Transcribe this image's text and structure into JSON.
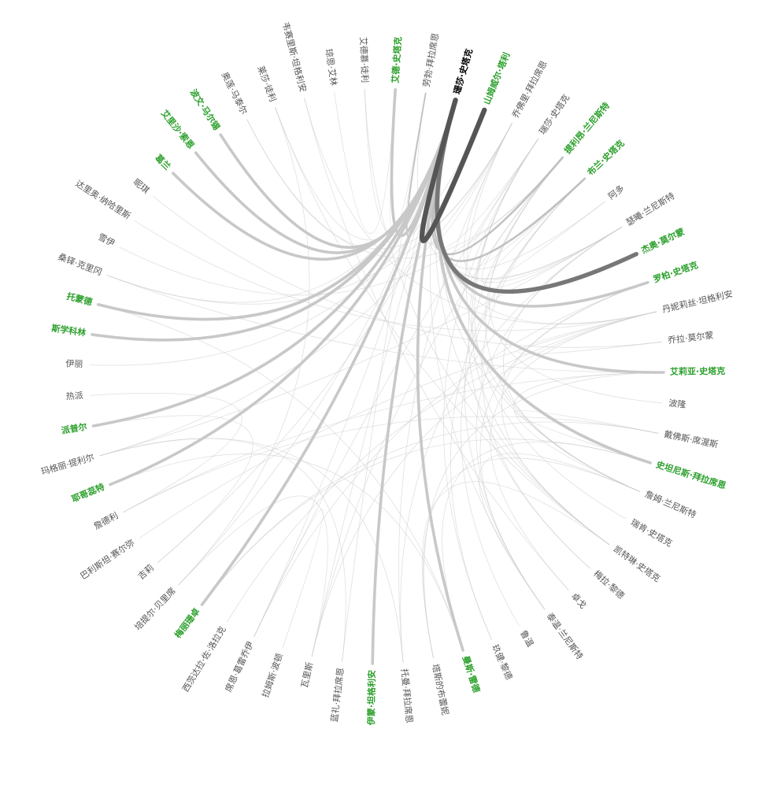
{
  "nodes": [
    {
      "name": "珊莎·史塔克",
      "highlight": false,
      "selected": true
    },
    {
      "name": "山姆威尔·塔利",
      "highlight": true
    },
    {
      "name": "乔佛里·拜拉席恩",
      "highlight": false
    },
    {
      "name": "瑞莎·史塔克",
      "highlight": false
    },
    {
      "name": "提利昂·兰尼斯特",
      "highlight": true
    },
    {
      "name": "布兰·史塔克",
      "highlight": true
    },
    {
      "name": "阿多",
      "highlight": false
    },
    {
      "name": "瑟曦·兰尼斯特",
      "highlight": false
    },
    {
      "name": "杰奥·莫尔蒙",
      "highlight": true
    },
    {
      "name": "罗柏·史塔克",
      "highlight": true
    },
    {
      "name": "丹妮莉丝·坦格利安",
      "highlight": false
    },
    {
      "name": "乔拉·莫尔蒙",
      "highlight": false
    },
    {
      "name": "艾莉亚·史塔克",
      "highlight": true
    },
    {
      "name": "波隆",
      "highlight": false
    },
    {
      "name": "戴佛斯·席渥斯",
      "highlight": false
    },
    {
      "name": "史坦尼斯·拜拉席恩",
      "highlight": true
    },
    {
      "name": "詹姆·兰尼斯特",
      "highlight": false
    },
    {
      "name": "瑞肯·史塔克",
      "highlight": false
    },
    {
      "name": "凯特琳·史塔克",
      "highlight": false
    },
    {
      "name": "梅拉·黎德",
      "highlight": false
    },
    {
      "name": "卓戈",
      "highlight": false
    },
    {
      "name": "泰温·兰尼斯特",
      "highlight": false
    },
    {
      "name": "鲁温",
      "highlight": false
    },
    {
      "name": "玖健·黎德",
      "highlight": false
    },
    {
      "name": "曼斯·雷德",
      "highlight": true
    },
    {
      "name": "塔斯的布蕾妮",
      "highlight": false
    },
    {
      "name": "托曼·拜拉席恩",
      "highlight": false
    },
    {
      "name": "伊蒙·坦格利安",
      "highlight": true
    },
    {
      "name": "蓝礼·拜拉席恩",
      "highlight": false
    },
    {
      "name": "瓦里斯",
      "highlight": false
    },
    {
      "name": "拉姆斯·波顿",
      "highlight": false
    },
    {
      "name": "席恩·葛雷乔伊",
      "highlight": false
    },
    {
      "name": "西茨达拉·佐·洛拉克",
      "highlight": false
    },
    {
      "name": "梅丽珊卓",
      "highlight": true
    },
    {
      "name": "培提尔·贝里席",
      "highlight": false
    },
    {
      "name": "吉莉",
      "highlight": false
    },
    {
      "name": "巴利斯坦·赛尔弥",
      "highlight": false
    },
    {
      "name": "詹德利",
      "highlight": false
    },
    {
      "name": "耶哥蕊特",
      "highlight": true
    },
    {
      "name": "玛格丽·提利尔",
      "highlight": false
    },
    {
      "name": "派普尔",
      "highlight": true
    },
    {
      "name": "热派",
      "highlight": false
    },
    {
      "name": "伊丽",
      "highlight": false
    },
    {
      "name": "斯学科林",
      "highlight": true
    },
    {
      "name": "托蒙德",
      "highlight": true
    },
    {
      "name": "桑铎·克里冈",
      "highlight": false
    },
    {
      "name": "雪伊",
      "highlight": false
    },
    {
      "name": "达里奥·纳哈里斯",
      "highlight": false
    },
    {
      "name": "昵琪",
      "highlight": false
    },
    {
      "name": "葛兰",
      "highlight": true
    },
    {
      "name": "艾里沙·索恩",
      "highlight": true
    },
    {
      "name": "波文·马尔锡",
      "highlight": true
    },
    {
      "name": "奥莲·马泰尔",
      "highlight": false
    },
    {
      "name": "莱莎·徒利",
      "highlight": false
    },
    {
      "name": "韦赛里斯·坦格利安",
      "highlight": false
    },
    {
      "name": "琼恩·艾林",
      "highlight": false
    },
    {
      "name": "艾德慕·徒利",
      "highlight": false
    },
    {
      "name": "艾德·史塔克",
      "highlight": true
    },
    {
      "name": "劳勃·拜拉席恩",
      "highlight": false
    }
  ],
  "links": [
    {
      "source": 0,
      "target": 1,
      "weight": 7,
      "style": "dark"
    },
    {
      "source": 0,
      "target": 8,
      "weight": 6,
      "style": "dark"
    },
    {
      "source": 0,
      "target": 9,
      "weight": 4
    },
    {
      "source": 0,
      "target": 12,
      "weight": 4
    },
    {
      "source": 0,
      "target": 15,
      "weight": 4
    },
    {
      "source": 0,
      "target": 24,
      "weight": 4
    },
    {
      "source": 0,
      "target": 27,
      "weight": 4
    },
    {
      "source": 0,
      "target": 33,
      "weight": 4
    },
    {
      "source": 0,
      "target": 38,
      "weight": 4
    },
    {
      "source": 0,
      "target": 40,
      "weight": 4
    },
    {
      "source": 0,
      "target": 43,
      "weight": 4
    },
    {
      "source": 0,
      "target": 44,
      "weight": 4
    },
    {
      "source": 0,
      "target": 49,
      "weight": 4
    },
    {
      "source": 0,
      "target": 50,
      "weight": 4
    },
    {
      "source": 0,
      "target": 51,
      "weight": 4
    },
    {
      "source": 0,
      "target": 57,
      "weight": 4
    },
    {
      "source": 0,
      "target": 4,
      "weight": 3
    },
    {
      "source": 0,
      "target": 5,
      "weight": 3
    },
    {
      "source": 0,
      "target": 58,
      "weight": 2
    },
    {
      "source": 0,
      "target": 2,
      "weight": 1
    },
    {
      "source": 0,
      "target": 3,
      "weight": 1
    },
    {
      "source": 0,
      "target": 6,
      "weight": 1
    },
    {
      "source": 0,
      "target": 7,
      "weight": 1
    },
    {
      "source": 0,
      "target": 10,
      "weight": 1
    },
    {
      "source": 0,
      "target": 16,
      "weight": 1
    },
    {
      "source": 0,
      "target": 18,
      "weight": 1
    },
    {
      "source": 0,
      "target": 21,
      "weight": 1
    },
    {
      "source": 0,
      "target": 29,
      "weight": 1
    },
    {
      "source": 0,
      "target": 31,
      "weight": 1
    },
    {
      "source": 0,
      "target": 34,
      "weight": 1
    },
    {
      "source": 0,
      "target": 45,
      "weight": 1
    },
    {
      "source": 0,
      "target": 53,
      "weight": 1
    },
    {
      "source": 0,
      "target": 56,
      "weight": 1
    },
    {
      "source": 2,
      "target": 7,
      "weight": 1
    },
    {
      "source": 2,
      "target": 16,
      "weight": 1
    },
    {
      "source": 2,
      "target": 26,
      "weight": 1
    },
    {
      "source": 2,
      "target": 39,
      "weight": 1
    },
    {
      "source": 2,
      "target": 45,
      "weight": 1
    },
    {
      "source": 2,
      "target": 52,
      "weight": 1
    },
    {
      "source": 3,
      "target": 5,
      "weight": 1
    },
    {
      "source": 3,
      "target": 17,
      "weight": 1
    },
    {
      "source": 3,
      "target": 18,
      "weight": 1
    },
    {
      "source": 3,
      "target": 19,
      "weight": 1
    },
    {
      "source": 3,
      "target": 23,
      "weight": 1
    },
    {
      "source": 3,
      "target": 31,
      "weight": 1
    },
    {
      "source": 4,
      "target": 7,
      "weight": 1
    },
    {
      "source": 4,
      "target": 13,
      "weight": 1
    },
    {
      "source": 4,
      "target": 16,
      "weight": 1
    },
    {
      "source": 4,
      "target": 21,
      "weight": 1
    },
    {
      "source": 4,
      "target": 29,
      "weight": 1
    },
    {
      "source": 4,
      "target": 46,
      "weight": 1
    },
    {
      "source": 4,
      "target": 52,
      "weight": 1
    },
    {
      "source": 5,
      "target": 6,
      "weight": 1
    },
    {
      "source": 5,
      "target": 19,
      "weight": 1
    },
    {
      "source": 5,
      "target": 22,
      "weight": 1
    },
    {
      "source": 5,
      "target": 23,
      "weight": 1
    },
    {
      "source": 7,
      "target": 16,
      "weight": 1
    },
    {
      "source": 7,
      "target": 21,
      "weight": 1
    },
    {
      "source": 7,
      "target": 26,
      "weight": 1
    },
    {
      "source": 7,
      "target": 39,
      "weight": 1
    },
    {
      "source": 7,
      "target": 58,
      "weight": 1
    },
    {
      "source": 9,
      "target": 18,
      "weight": 1
    },
    {
      "source": 9,
      "target": 21,
      "weight": 1
    },
    {
      "source": 9,
      "target": 31,
      "weight": 1
    },
    {
      "source": 10,
      "target": 11,
      "weight": 1
    },
    {
      "source": 10,
      "target": 20,
      "weight": 1
    },
    {
      "source": 10,
      "target": 32,
      "weight": 1
    },
    {
      "source": 10,
      "target": 36,
      "weight": 1
    },
    {
      "source": 10,
      "target": 47,
      "weight": 1
    },
    {
      "source": 10,
      "target": 54,
      "weight": 1
    },
    {
      "source": 10,
      "target": 29,
      "weight": 1
    },
    {
      "source": 12,
      "target": 16,
      "weight": 1
    },
    {
      "source": 12,
      "target": 37,
      "weight": 1
    },
    {
      "source": 12,
      "target": 45,
      "weight": 1
    },
    {
      "source": 12,
      "target": 25,
      "weight": 1
    },
    {
      "source": 14,
      "target": 15,
      "weight": 1
    },
    {
      "source": 14,
      "target": 33,
      "weight": 1
    },
    {
      "source": 14,
      "target": 37,
      "weight": 1
    },
    {
      "source": 15,
      "target": 33,
      "weight": 1
    },
    {
      "source": 15,
      "target": 24,
      "weight": 1
    },
    {
      "source": 16,
      "target": 25,
      "weight": 1
    },
    {
      "source": 16,
      "target": 21,
      "weight": 1
    },
    {
      "source": 18,
      "target": 25,
      "weight": 1
    },
    {
      "source": 18,
      "target": 56,
      "weight": 1
    },
    {
      "source": 18,
      "target": 53,
      "weight": 1
    },
    {
      "source": 24,
      "target": 38,
      "weight": 1
    },
    {
      "source": 24,
      "target": 44,
      "weight": 1
    },
    {
      "source": 26,
      "target": 39,
      "weight": 1
    },
    {
      "source": 28,
      "target": 39,
      "weight": 1
    },
    {
      "source": 28,
      "target": 58,
      "weight": 1
    },
    {
      "source": 29,
      "target": 34,
      "weight": 1
    },
    {
      "source": 30,
      "target": 31,
      "weight": 1
    },
    {
      "source": 35,
      "target": 40,
      "weight": 1
    },
    {
      "source": 35,
      "target": 1,
      "weight": 1
    },
    {
      "source": 34,
      "target": 53,
      "weight": 1
    },
    {
      "source": 41,
      "target": 37,
      "weight": 1
    },
    {
      "source": 42,
      "target": 1,
      "weight": 1
    },
    {
      "source": 48,
      "target": 11,
      "weight": 1
    },
    {
      "source": 54,
      "target": 20,
      "weight": 1
    },
    {
      "source": 55,
      "target": 57,
      "weight": 1
    },
    {
      "source": 57,
      "target": 58,
      "weight": 1
    }
  ]
}
